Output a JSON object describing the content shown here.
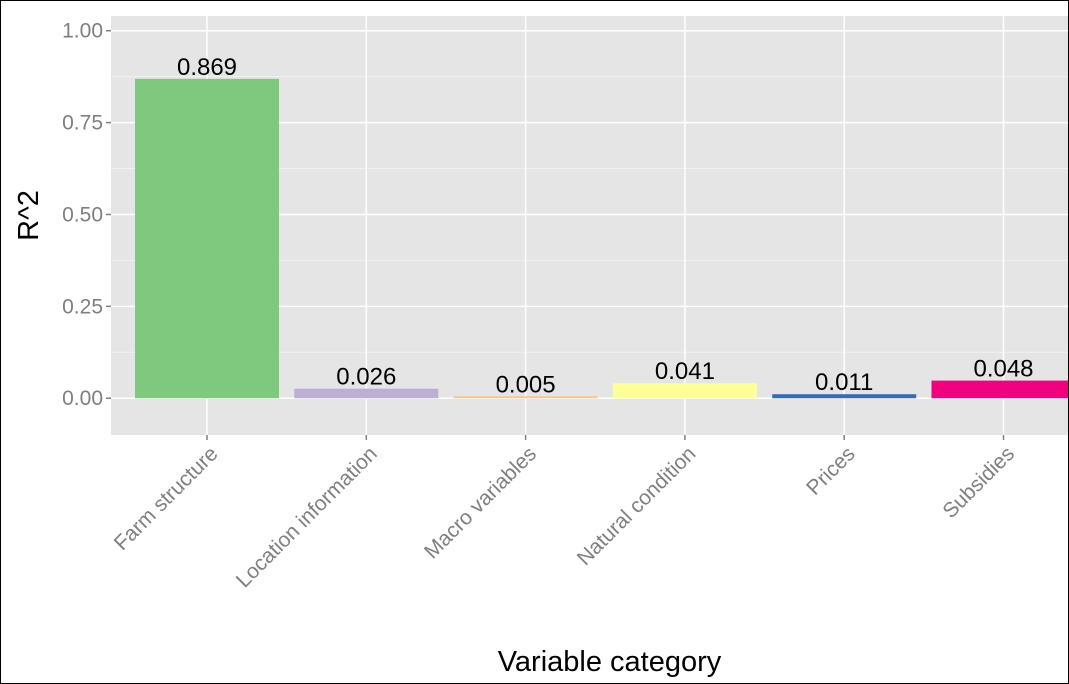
{
  "chart_data": {
    "type": "bar",
    "title": "",
    "xlabel": "Variable category",
    "ylabel": "R^2",
    "categories": [
      "Farm structure",
      "Location information",
      "Macro variables",
      "Natural condition",
      "Prices",
      "Subsidies"
    ],
    "values": [
      0.869,
      0.026,
      0.005,
      0.041,
      0.011,
      0.048
    ],
    "value_labels": [
      "0.869",
      "0.026",
      "0.005",
      "0.041",
      "0.011",
      "0.048"
    ],
    "colors": [
      "#7fc97f",
      "#beaed4",
      "#fdc086",
      "#ffff99",
      "#386cb0",
      "#f0027f"
    ],
    "yticks": [
      0,
      0.25,
      0.5,
      0.75,
      1
    ],
    "ytick_labels": [
      "0.00",
      "0.25",
      "0.50",
      "0.75",
      "1.00"
    ],
    "ylim": [
      -0.1,
      1.04
    ],
    "grid": true,
    "legend": "none",
    "panel_background": "#e5e5e5",
    "grid_color": "#ffffff"
  }
}
